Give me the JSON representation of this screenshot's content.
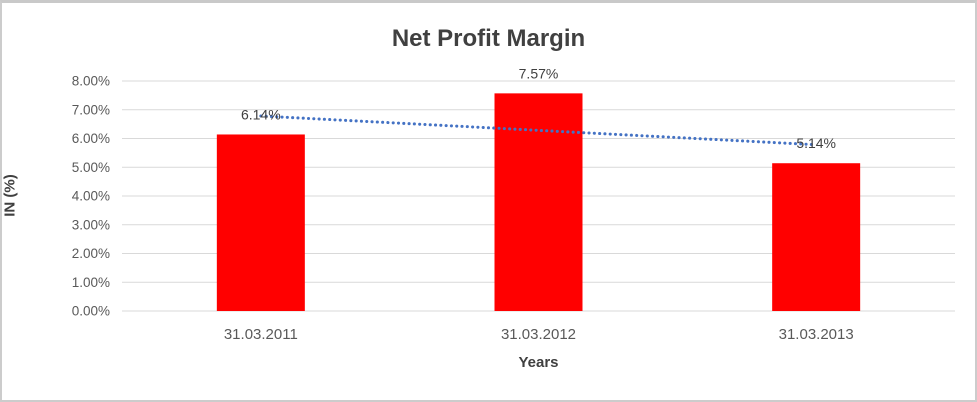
{
  "chart_data": {
    "type": "bar",
    "title": "Net Profit Margin",
    "xlabel": "Years",
    "ylabel": "IN (%)",
    "categories": [
      "31.03.2011",
      "31.03.2012",
      "31.03.2013"
    ],
    "values": [
      6.14,
      7.57,
      5.14
    ],
    "data_labels": [
      "6.14%",
      "7.57%",
      "5.14%"
    ],
    "ylim": [
      0,
      8
    ],
    "ytick_step": 1,
    "ytick_labels": [
      "0.00%",
      "1.00%",
      "2.00%",
      "3.00%",
      "4.00%",
      "5.00%",
      "6.00%",
      "7.00%",
      "8.00%"
    ],
    "grid": true,
    "legend": "none",
    "trendline": {
      "kind": "linear",
      "style": "dotted"
    },
    "colors": {
      "bar": "#FF0000",
      "trendline": "#4472C4",
      "gridline": "#D9D9D9",
      "title_text": "#404040",
      "axis_title_text": "#404040",
      "tick_text": "#595959",
      "data_label_text": "#404040"
    }
  }
}
